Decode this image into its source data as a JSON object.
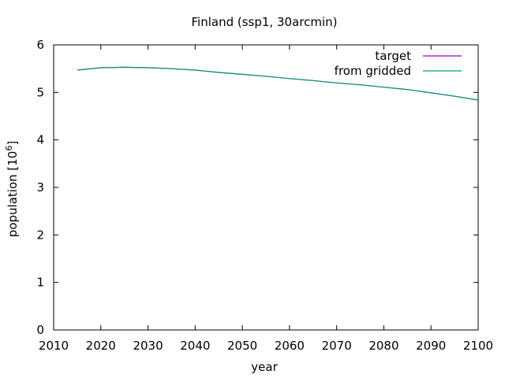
{
  "chart_data": {
    "type": "line",
    "title": "Finland (ssp1, 30arcmin)",
    "xlabel": "year",
    "ylabel_main": "population [10",
    "ylabel_exp": "6",
    "ylabel_close": "]",
    "xlim": [
      2010,
      2100
    ],
    "ylim": [
      0,
      6
    ],
    "xticks": [
      2010,
      2020,
      2030,
      2040,
      2050,
      2060,
      2070,
      2080,
      2090,
      2100
    ],
    "yticks": [
      0,
      1,
      2,
      3,
      4,
      5,
      6
    ],
    "grid": false,
    "legend_position": "top-right",
    "x": [
      2015,
      2020,
      2025,
      2030,
      2035,
      2040,
      2045,
      2050,
      2055,
      2060,
      2065,
      2070,
      2075,
      2080,
      2085,
      2090,
      2095,
      2100
    ],
    "series": [
      {
        "name": "target",
        "color": "#9400d3",
        "values": [
          5.47,
          5.52,
          5.53,
          5.52,
          5.5,
          5.47,
          5.42,
          5.38,
          5.34,
          5.29,
          5.25,
          5.2,
          5.16,
          5.11,
          5.06,
          4.99,
          4.92,
          4.84
        ]
      },
      {
        "name": "from gridded",
        "color": "#009e73",
        "values": [
          5.47,
          5.52,
          5.53,
          5.52,
          5.5,
          5.47,
          5.42,
          5.38,
          5.34,
          5.29,
          5.25,
          5.2,
          5.16,
          5.11,
          5.06,
          4.99,
          4.92,
          4.84
        ]
      }
    ]
  }
}
